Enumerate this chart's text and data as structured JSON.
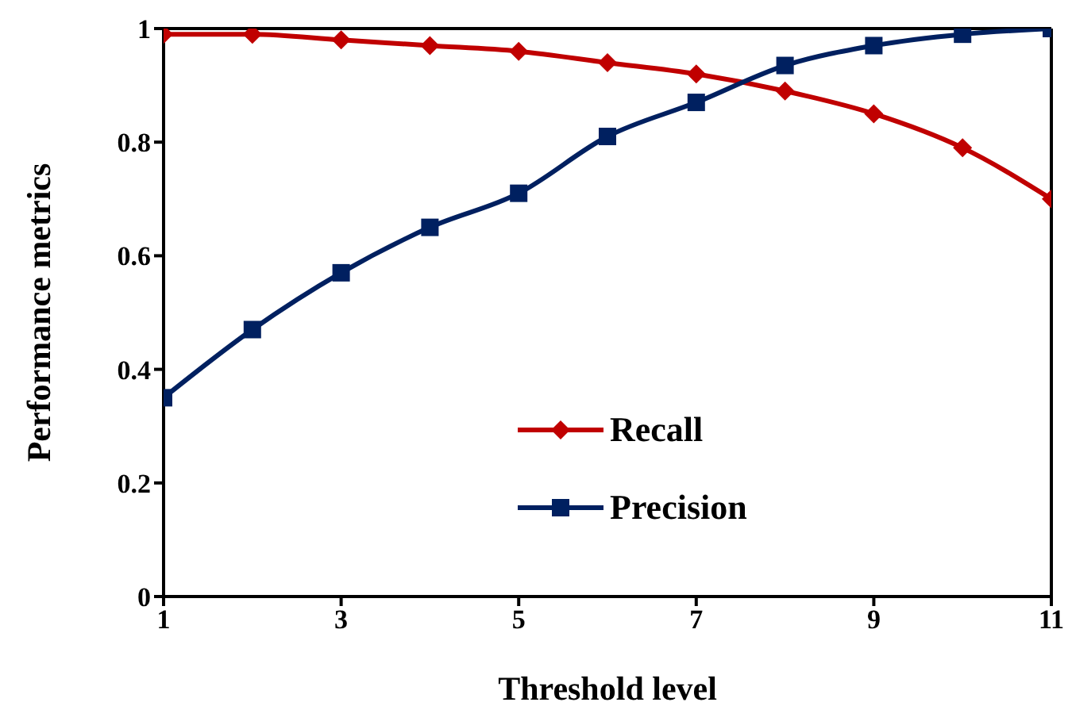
{
  "chart_data": {
    "type": "line",
    "xlabel": "Threshold level",
    "ylabel": "Performance metrics",
    "x": [
      1,
      2,
      3,
      4,
      5,
      6,
      7,
      8,
      9,
      10,
      11
    ],
    "series": [
      {
        "name": "Recall",
        "color": "#c00000",
        "marker": "diamond",
        "values": [
          0.99,
          0.99,
          0.98,
          0.97,
          0.96,
          0.94,
          0.92,
          0.89,
          0.85,
          0.79,
          0.7
        ]
      },
      {
        "name": "Precision",
        "color": "#002060",
        "marker": "square",
        "values": [
          0.35,
          0.47,
          0.57,
          0.65,
          0.71,
          0.81,
          0.87,
          0.935,
          0.97,
          0.99,
          1.0
        ]
      }
    ],
    "xlim": [
      1,
      11
    ],
    "xticks": [
      1,
      3,
      5,
      7,
      9,
      11
    ],
    "ylim": [
      0,
      1
    ],
    "yticks": [
      0,
      0.2,
      0.4,
      0.6,
      0.8,
      1
    ],
    "grid": false,
    "legend": "bottom",
    "line_style": "solid"
  }
}
